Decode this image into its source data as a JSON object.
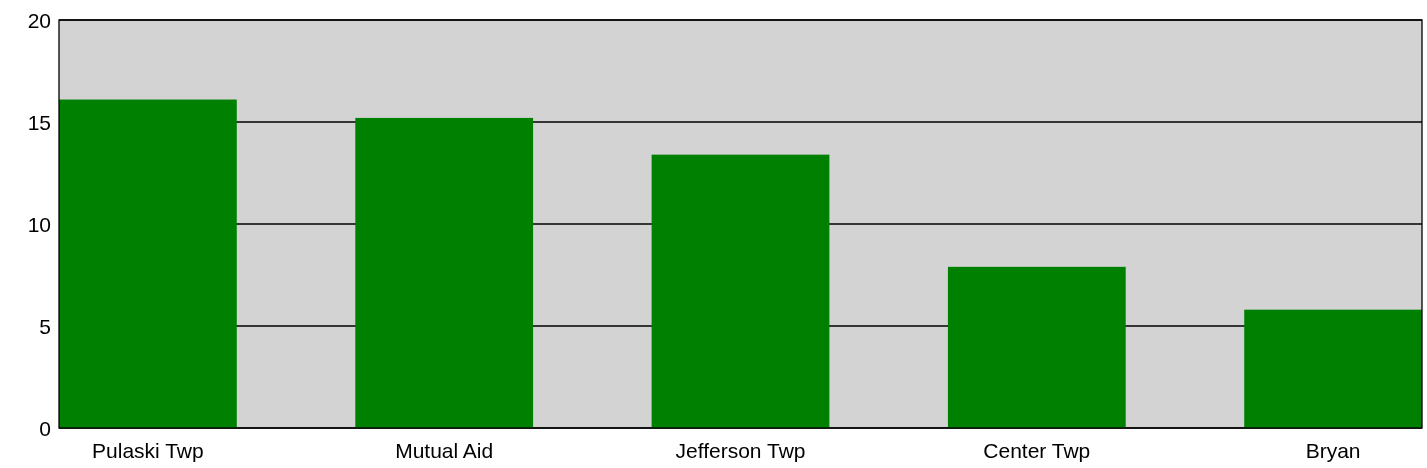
{
  "chart_data": {
    "type": "bar",
    "categories": [
      "Pulaski Twp",
      "Mutual Aid",
      "Jefferson Twp",
      "Center Twp",
      "Bryan"
    ],
    "values": [
      16.1,
      15.2,
      13.4,
      7.9,
      5.8
    ],
    "color": "#008000",
    "ylim": [
      0,
      20
    ],
    "yticks": [
      0,
      5,
      10,
      15,
      20
    ],
    "grid": "y"
  }
}
